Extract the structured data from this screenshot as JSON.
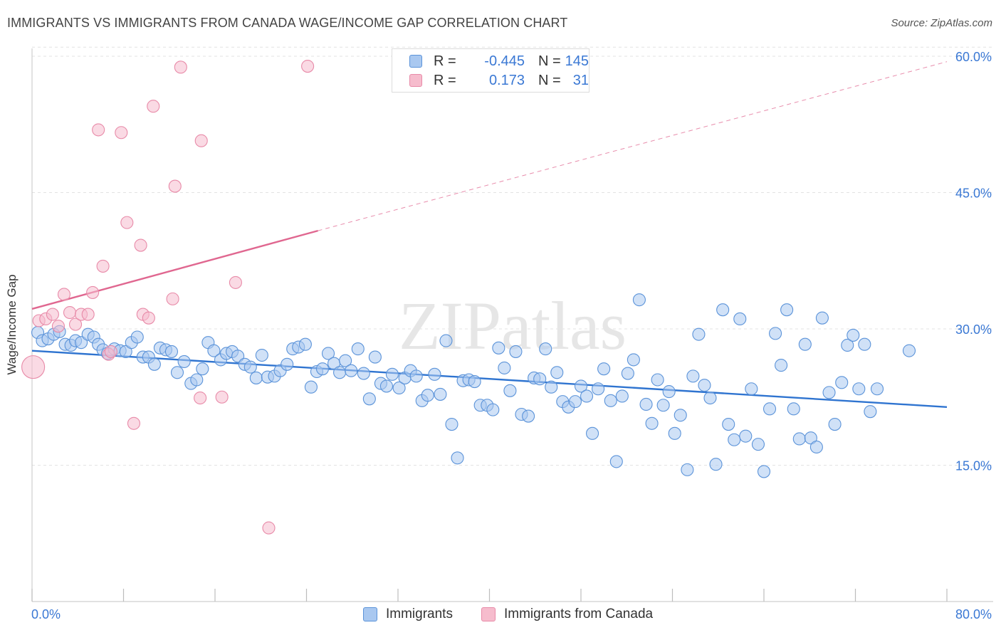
{
  "title": "IMMIGRANTS VS IMMIGRANTS FROM CANADA WAGE/INCOME GAP CORRELATION CHART",
  "source": "Source: ZipAtlas.com",
  "watermark": "ZIPatlas",
  "colors": {
    "blue_fill": "#a9c8f0",
    "blue_stroke": "#5b93d9",
    "blue_line": "#2f74d0",
    "pink_fill": "#f6bccd",
    "pink_stroke": "#e88aa8",
    "pink_line": "#e06790",
    "tick_label": "#3a78d4"
  },
  "legend_top": {
    "rows": [
      {
        "r_label": "R =",
        "r_value": "-0.445",
        "n_label": "N =",
        "n_value": "145",
        "swatch": "blue"
      },
      {
        "r_label": "R =",
        "r_value": "0.173",
        "n_label": "N =",
        "n_value": "31",
        "swatch": "pink"
      }
    ]
  },
  "legend_bottom": [
    {
      "label": "Immigrants",
      "swatch": "blue"
    },
    {
      "label": "Immigrants from Canada",
      "swatch": "pink"
    }
  ],
  "chart_data": {
    "type": "scatter",
    "title": "IMMIGRANTS VS IMMIGRANTS FROM CANADA WAGE/INCOME GAP CORRELATION CHART",
    "xlabel": "",
    "ylabel": "Wage/Income Gap",
    "xlim": [
      0,
      80
    ],
    "ylim": [
      0,
      60
    ],
    "x_tick_labels": [
      "0.0%",
      "80.0%"
    ],
    "y_tick_labels": [
      "15.0%",
      "30.0%",
      "45.0%",
      "60.0%"
    ],
    "y_ticks": [
      15,
      30,
      45,
      60
    ],
    "grid": true,
    "legend": "top-center",
    "series": [
      {
        "name": "Immigrants",
        "color": "blue",
        "trend": {
          "x": [
            0,
            80
          ],
          "y": [
            27.6,
            21.4
          ],
          "style": "solid"
        },
        "points": [
          [
            0.5,
            29.6
          ],
          [
            0.9,
            28.7
          ],
          [
            1.4,
            28.9
          ],
          [
            1.9,
            29.4
          ],
          [
            2.4,
            29.7
          ],
          [
            2.9,
            28.3
          ],
          [
            3.4,
            28.2
          ],
          [
            3.8,
            28.7
          ],
          [
            4.3,
            28.5
          ],
          [
            4.9,
            29.4
          ],
          [
            5.4,
            29.1
          ],
          [
            5.8,
            28.3
          ],
          [
            6.2,
            27.7
          ],
          [
            6.6,
            27.3
          ],
          [
            7.2,
            27.8
          ],
          [
            7.7,
            27.6
          ],
          [
            8.2,
            27.5
          ],
          [
            8.7,
            28.5
          ],
          [
            9.2,
            29.1
          ],
          [
            9.7,
            26.9
          ],
          [
            10.2,
            26.9
          ],
          [
            10.7,
            26.1
          ],
          [
            11.2,
            27.9
          ],
          [
            11.7,
            27.7
          ],
          [
            12.2,
            27.5
          ],
          [
            12.7,
            25.2
          ],
          [
            13.3,
            26.4
          ],
          [
            13.9,
            24.0
          ],
          [
            14.4,
            24.4
          ],
          [
            14.9,
            25.6
          ],
          [
            15.4,
            28.5
          ],
          [
            15.9,
            27.6
          ],
          [
            16.5,
            26.6
          ],
          [
            17.0,
            27.3
          ],
          [
            17.5,
            27.5
          ],
          [
            18.0,
            27.0
          ],
          [
            18.6,
            26.1
          ],
          [
            19.1,
            25.8
          ],
          [
            19.6,
            24.6
          ],
          [
            20.1,
            27.1
          ],
          [
            20.6,
            24.7
          ],
          [
            21.2,
            24.8
          ],
          [
            21.7,
            25.4
          ],
          [
            22.3,
            26.1
          ],
          [
            22.8,
            27.8
          ],
          [
            23.3,
            28.0
          ],
          [
            23.9,
            28.3
          ],
          [
            24.4,
            23.6
          ],
          [
            24.9,
            25.3
          ],
          [
            25.4,
            25.6
          ],
          [
            25.9,
            27.3
          ],
          [
            26.4,
            26.2
          ],
          [
            26.9,
            25.2
          ],
          [
            27.4,
            26.5
          ],
          [
            27.9,
            25.4
          ],
          [
            28.5,
            27.8
          ],
          [
            29.0,
            25.1
          ],
          [
            29.5,
            22.3
          ],
          [
            30.0,
            26.9
          ],
          [
            30.5,
            24.0
          ],
          [
            31.0,
            23.7
          ],
          [
            31.5,
            25.0
          ],
          [
            32.1,
            23.5
          ],
          [
            32.6,
            24.6
          ],
          [
            33.1,
            25.4
          ],
          [
            33.6,
            24.8
          ],
          [
            34.1,
            22.1
          ],
          [
            34.6,
            22.7
          ],
          [
            35.2,
            25.0
          ],
          [
            35.7,
            22.8
          ],
          [
            36.2,
            28.7
          ],
          [
            36.7,
            19.5
          ],
          [
            37.2,
            15.8
          ],
          [
            37.7,
            24.3
          ],
          [
            38.2,
            24.4
          ],
          [
            38.7,
            24.2
          ],
          [
            39.2,
            21.6
          ],
          [
            39.8,
            21.6
          ],
          [
            40.3,
            21.1
          ],
          [
            40.8,
            27.9
          ],
          [
            41.3,
            25.7
          ],
          [
            41.8,
            23.2
          ],
          [
            42.3,
            27.5
          ],
          [
            42.8,
            20.6
          ],
          [
            43.4,
            20.4
          ],
          [
            43.9,
            24.6
          ],
          [
            44.4,
            24.5
          ],
          [
            44.9,
            27.8
          ],
          [
            45.4,
            23.6
          ],
          [
            45.9,
            25.2
          ],
          [
            46.4,
            22.0
          ],
          [
            46.9,
            21.4
          ],
          [
            47.5,
            22.0
          ],
          [
            48.0,
            23.7
          ],
          [
            48.5,
            22.6
          ],
          [
            49.0,
            18.5
          ],
          [
            49.5,
            23.4
          ],
          [
            50.0,
            25.6
          ],
          [
            50.6,
            22.1
          ],
          [
            51.1,
            15.4
          ],
          [
            51.6,
            22.6
          ],
          [
            52.1,
            25.1
          ],
          [
            52.6,
            26.6
          ],
          [
            53.1,
            33.2
          ],
          [
            53.7,
            21.7
          ],
          [
            54.2,
            19.6
          ],
          [
            54.7,
            24.4
          ],
          [
            55.2,
            21.6
          ],
          [
            55.7,
            23.1
          ],
          [
            56.2,
            18.5
          ],
          [
            56.7,
            20.5
          ],
          [
            57.3,
            14.5
          ],
          [
            57.8,
            24.8
          ],
          [
            58.3,
            29.4
          ],
          [
            58.8,
            23.8
          ],
          [
            59.3,
            22.4
          ],
          [
            59.8,
            15.1
          ],
          [
            60.4,
            32.1
          ],
          [
            60.9,
            19.5
          ],
          [
            61.4,
            17.8
          ],
          [
            61.9,
            31.1
          ],
          [
            62.4,
            18.2
          ],
          [
            62.9,
            23.4
          ],
          [
            63.5,
            17.3
          ],
          [
            64.0,
            14.3
          ],
          [
            64.5,
            21.2
          ],
          [
            65.0,
            29.5
          ],
          [
            65.5,
            26.0
          ],
          [
            66.0,
            32.1
          ],
          [
            66.6,
            21.2
          ],
          [
            67.1,
            17.9
          ],
          [
            67.6,
            28.3
          ],
          [
            68.1,
            18.0
          ],
          [
            68.6,
            17.0
          ],
          [
            69.1,
            31.2
          ],
          [
            69.7,
            23.0
          ],
          [
            70.2,
            19.5
          ],
          [
            70.8,
            24.1
          ],
          [
            71.3,
            28.2
          ],
          [
            71.8,
            29.3
          ],
          [
            72.3,
            23.4
          ],
          [
            72.8,
            28.3
          ],
          [
            73.3,
            20.9
          ],
          [
            73.9,
            23.4
          ],
          [
            76.7,
            27.6
          ]
        ]
      },
      {
        "name": "Immigrants from Canada",
        "color": "pink",
        "trend": {
          "x": [
            0,
            25
          ],
          "y": [
            32.2,
            40.8
          ],
          "style": "solid",
          "dashed_extension": {
            "x": [
              25,
              80
            ],
            "y": [
              40.8,
              59.4
            ]
          }
        },
        "points": [
          [
            0.6,
            30.9
          ],
          [
            1.2,
            31.1
          ],
          [
            1.8,
            31.6
          ],
          [
            2.3,
            30.3
          ],
          [
            2.8,
            33.8
          ],
          [
            3.3,
            31.8
          ],
          [
            3.8,
            30.5
          ],
          [
            4.3,
            31.6
          ],
          [
            4.9,
            31.6
          ],
          [
            5.3,
            34.0
          ],
          [
            6.2,
            36.9
          ],
          [
            6.7,
            27.2
          ],
          [
            6.9,
            27.5
          ],
          [
            5.8,
            51.9
          ],
          [
            7.8,
            51.6
          ],
          [
            8.3,
            41.7
          ],
          [
            8.9,
            19.6
          ],
          [
            9.5,
            39.2
          ],
          [
            9.7,
            31.6
          ],
          [
            10.2,
            31.2
          ],
          [
            10.6,
            54.5
          ],
          [
            12.3,
            33.3
          ],
          [
            12.5,
            45.7
          ],
          [
            13.0,
            58.8
          ],
          [
            14.7,
            22.4
          ],
          [
            14.8,
            50.7
          ],
          [
            16.6,
            22.5
          ],
          [
            17.8,
            35.1
          ],
          [
            20.7,
            8.1
          ],
          [
            24.1,
            58.9
          ],
          [
            0.1,
            25.8
          ]
        ]
      }
    ]
  }
}
